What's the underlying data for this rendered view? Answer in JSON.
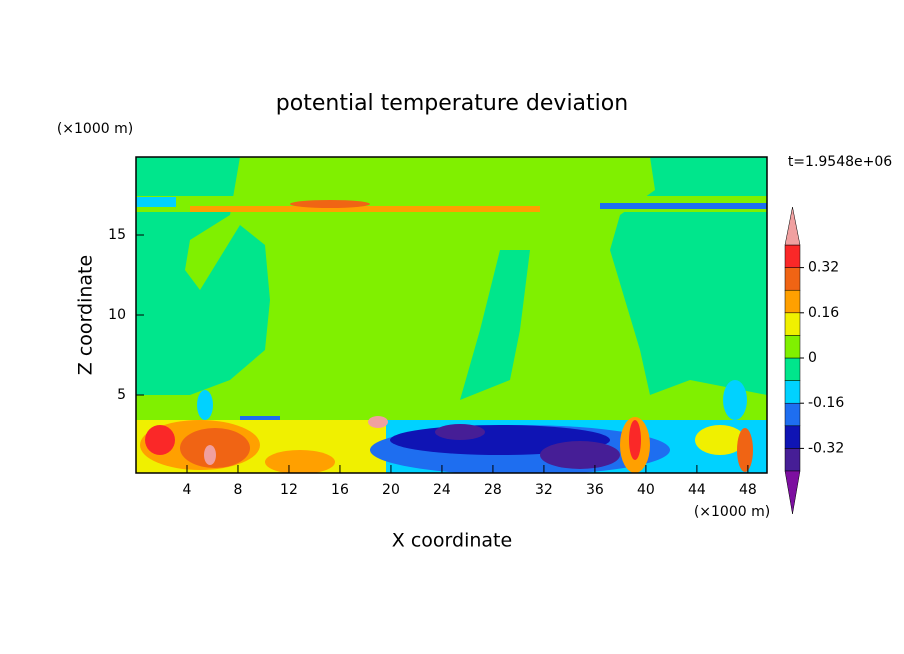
{
  "chart_data": {
    "type": "contour",
    "title": "potential temperature deviation",
    "x_label": "X coordinate",
    "y_label": "Z coordinate",
    "x_unit": "(×1000 m)",
    "y_unit": "(×1000 m)",
    "time_label": "t=1.9548e+06",
    "xlim": [
      0,
      49.5
    ],
    "ylim": [
      0.125,
      19.875
    ],
    "xticks": [
      4,
      8,
      12,
      16,
      20,
      24,
      28,
      32,
      36,
      40,
      44,
      48
    ],
    "yticks": [
      5,
      10,
      15
    ],
    "levels": [
      -0.4,
      -0.32,
      -0.24,
      -0.16,
      -0.08,
      0,
      0.08,
      0.16,
      0.24,
      0.32,
      0.4
    ],
    "colors": [
      "#7d0fa0",
      "#461e96",
      "#0f14b4",
      "#1e6ef0",
      "#00d2ff",
      "#00e68c",
      "#80f000",
      "#f0f000",
      "#ffa000",
      "#f06414",
      "#fa2828",
      "#f0a0a0"
    ],
    "colorbar_ticks": [
      0.32,
      0.16,
      0,
      -0.16,
      -0.32
    ]
  }
}
